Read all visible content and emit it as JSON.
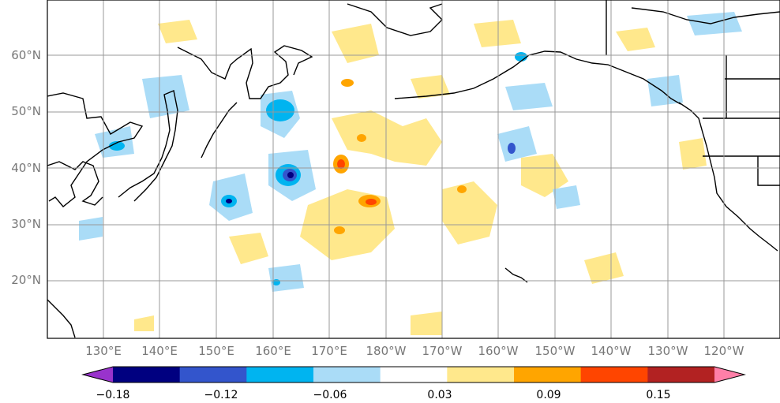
{
  "map": {
    "lat_labels": [
      "60°N",
      "50°N",
      "40°N",
      "30°N",
      "20°N"
    ],
    "lon_labels": [
      "130°E",
      "140°E",
      "150°E",
      "160°E",
      "170°E",
      "180°W",
      "170°W",
      "160°W",
      "150°W",
      "140°W",
      "130°W",
      "120°W"
    ],
    "extent": {
      "lon_min": 120,
      "lon_max": 250,
      "lat_min": 10,
      "lat_max": 70
    },
    "grid": true,
    "colors": {
      "land_line": "#000000",
      "grid": "#999999"
    }
  },
  "colorbar": {
    "ticks": [
      "−0.18",
      "−0.12",
      "−0.06",
      "0.03",
      "0.09",
      "0.15"
    ],
    "colors": [
      "#9933cc",
      "#000080",
      "#3355cc",
      "#00b4f0",
      "#aadcf7",
      "#ffffff",
      "#ffe88c",
      "#ffa500",
      "#ff4500",
      "#b22222",
      "#ff7fa8"
    ],
    "extend": "both"
  }
}
